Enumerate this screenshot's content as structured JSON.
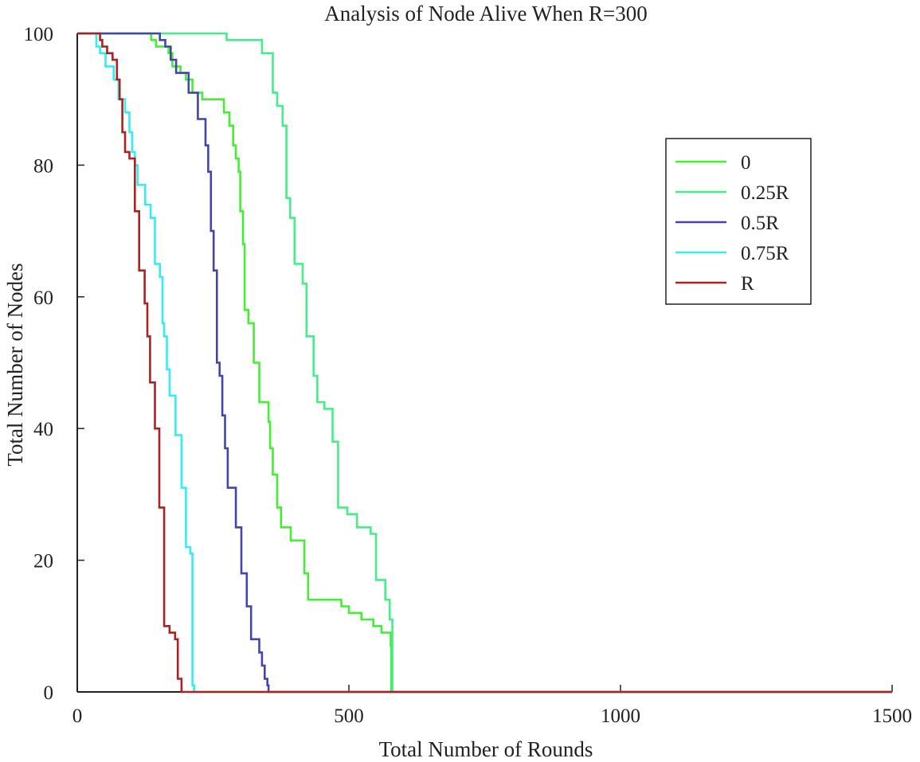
{
  "chart_data": {
    "type": "line",
    "title": "Analysis of Node Alive When R=300",
    "xlabel": "Total Number of Rounds",
    "ylabel": "Total Number of Nodes",
    "xlim": [
      0,
      1500
    ],
    "ylim": [
      0,
      100
    ],
    "xticks": [
      0,
      500,
      1000,
      1500
    ],
    "yticks": [
      0,
      20,
      40,
      60,
      80,
      100
    ],
    "grid": false,
    "legend_position": "right",
    "step": true,
    "series": [
      {
        "name": "0",
        "color": "#44ee33",
        "points": [
          [
            0,
            100
          ],
          [
            130,
            100
          ],
          [
            136,
            99
          ],
          [
            145,
            98
          ],
          [
            168,
            97
          ],
          [
            175,
            95
          ],
          [
            190,
            94
          ],
          [
            200,
            93
          ],
          [
            212,
            91
          ],
          [
            230,
            90
          ],
          [
            262,
            90
          ],
          [
            270,
            88
          ],
          [
            280,
            86
          ],
          [
            287,
            83
          ],
          [
            292,
            81
          ],
          [
            297,
            79
          ],
          [
            300,
            73
          ],
          [
            305,
            68
          ],
          [
            308,
            58
          ],
          [
            315,
            56
          ],
          [
            325,
            50
          ],
          [
            335,
            44
          ],
          [
            352,
            41
          ],
          [
            355,
            37
          ],
          [
            360,
            33
          ],
          [
            368,
            28
          ],
          [
            375,
            25
          ],
          [
            393,
            23
          ],
          [
            418,
            18
          ],
          [
            425,
            14
          ],
          [
            486,
            13
          ],
          [
            500,
            12
          ],
          [
            523,
            11
          ],
          [
            545,
            10
          ],
          [
            560,
            9
          ],
          [
            577,
            7
          ],
          [
            578,
            0
          ],
          [
            1500,
            0
          ]
        ]
      },
      {
        "name": "0.25R",
        "color": "#44ee88",
        "points": [
          [
            0,
            100
          ],
          [
            270,
            100
          ],
          [
            275,
            99
          ],
          [
            340,
            97
          ],
          [
            360,
            91
          ],
          [
            368,
            89
          ],
          [
            378,
            86
          ],
          [
            385,
            75
          ],
          [
            392,
            72
          ],
          [
            400,
            65
          ],
          [
            415,
            62
          ],
          [
            422,
            54
          ],
          [
            435,
            48
          ],
          [
            442,
            44
          ],
          [
            455,
            43
          ],
          [
            470,
            38
          ],
          [
            480,
            28
          ],
          [
            497,
            27
          ],
          [
            515,
            25
          ],
          [
            540,
            24
          ],
          [
            550,
            17
          ],
          [
            567,
            14
          ],
          [
            575,
            11
          ],
          [
            580,
            0
          ],
          [
            1500,
            0
          ]
        ]
      },
      {
        "name": "0.5R",
        "color": "#4444aa",
        "points": [
          [
            0,
            100
          ],
          [
            140,
            100
          ],
          [
            152,
            99
          ],
          [
            162,
            98
          ],
          [
            172,
            96
          ],
          [
            182,
            94
          ],
          [
            205,
            91
          ],
          [
            222,
            87
          ],
          [
            236,
            83
          ],
          [
            241,
            79
          ],
          [
            246,
            70
          ],
          [
            251,
            64
          ],
          [
            257,
            50
          ],
          [
            262,
            48
          ],
          [
            267,
            42
          ],
          [
            272,
            37
          ],
          [
            277,
            31
          ],
          [
            292,
            25
          ],
          [
            302,
            18
          ],
          [
            312,
            13
          ],
          [
            320,
            8
          ],
          [
            335,
            6
          ],
          [
            340,
            4
          ],
          [
            345,
            2
          ],
          [
            350,
            1
          ],
          [
            352,
            0
          ],
          [
            1500,
            0
          ]
        ]
      },
      {
        "name": "0.75R",
        "color": "#33eeee",
        "points": [
          [
            0,
            100
          ],
          [
            30,
            100
          ],
          [
            35,
            98
          ],
          [
            42,
            97
          ],
          [
            52,
            95
          ],
          [
            67,
            93
          ],
          [
            76,
            90
          ],
          [
            88,
            88
          ],
          [
            96,
            85
          ],
          [
            101,
            82
          ],
          [
            106,
            80
          ],
          [
            111,
            77
          ],
          [
            125,
            74
          ],
          [
            135,
            72
          ],
          [
            143,
            65
          ],
          [
            152,
            63
          ],
          [
            157,
            56
          ],
          [
            160,
            54
          ],
          [
            165,
            49
          ],
          [
            170,
            45
          ],
          [
            181,
            39
          ],
          [
            192,
            31
          ],
          [
            200,
            22
          ],
          [
            208,
            21
          ],
          [
            212,
            1
          ],
          [
            215,
            0
          ],
          [
            1500,
            0
          ]
        ]
      },
      {
        "name": "R",
        "color": "#aa2222",
        "points": [
          [
            0,
            100
          ],
          [
            35,
            100
          ],
          [
            42,
            99
          ],
          [
            46,
            98
          ],
          [
            55,
            97
          ],
          [
            65,
            96
          ],
          [
            73,
            93
          ],
          [
            78,
            90
          ],
          [
            83,
            85
          ],
          [
            88,
            82
          ],
          [
            96,
            81
          ],
          [
            106,
            73
          ],
          [
            114,
            64
          ],
          [
            124,
            59
          ],
          [
            129,
            54
          ],
          [
            134,
            47
          ],
          [
            143,
            40
          ],
          [
            151,
            28
          ],
          [
            160,
            10
          ],
          [
            170,
            9
          ],
          [
            180,
            8
          ],
          [
            185,
            2
          ],
          [
            192,
            0
          ],
          [
            1500,
            0
          ]
        ]
      }
    ]
  }
}
